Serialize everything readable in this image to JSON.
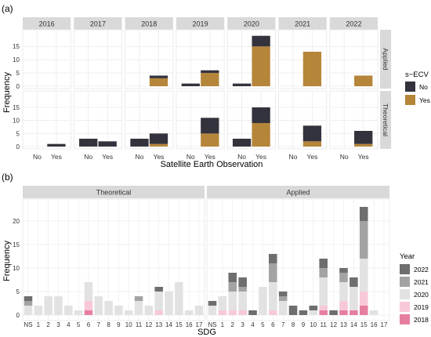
{
  "colors": {
    "no": "#33333d",
    "yes": "#b5853a",
    "y2022": "#6e6e6e",
    "y2021": "#a3a3a3",
    "y2020": "#e2e2e2",
    "y2019": "#f7c9d8",
    "y2018": "#e67f9f",
    "strip": "#d9d9d9",
    "grid": "#ebebeb",
    "border": "#bdbdbd"
  },
  "chart_data": [
    {
      "panel_label": "(a)",
      "type": "bar",
      "stacked": true,
      "facet_columns": [
        "2016",
        "2017",
        "2018",
        "2019",
        "2020",
        "2021",
        "2022"
      ],
      "facet_rows": [
        "Applied",
        "Theoretical"
      ],
      "categories": [
        "No",
        "Yes"
      ],
      "xlabel": "Satellite Earth Observation",
      "ylabel": "Frequency",
      "yticks": [
        0,
        5,
        10,
        15
      ],
      "ylim": [
        0,
        19.5
      ],
      "grid": true,
      "legend": {
        "title": "s−ECV",
        "entries": [
          "No",
          "Yes"
        ],
        "placement": "right"
      },
      "values": {
        "Applied": {
          "2016": {
            "No": {
              "Yes": 0,
              "No": 0
            },
            "Yes": {
              "Yes": 0,
              "No": 0
            }
          },
          "2017": {
            "No": {
              "Yes": 0,
              "No": 0
            },
            "Yes": {
              "Yes": 0,
              "No": 0
            }
          },
          "2018": {
            "No": {
              "Yes": 0,
              "No": 0
            },
            "Yes": {
              "Yes": 3,
              "No": 1
            }
          },
          "2019": {
            "No": {
              "Yes": 0,
              "No": 1
            },
            "Yes": {
              "Yes": 5,
              "No": 1
            }
          },
          "2020": {
            "No": {
              "Yes": 0,
              "No": 1
            },
            "Yes": {
              "Yes": 15,
              "No": 4
            }
          },
          "2021": {
            "No": {
              "Yes": 0,
              "No": 0
            },
            "Yes": {
              "Yes": 13,
              "No": 0
            }
          },
          "2022": {
            "No": {
              "Yes": 0,
              "No": 0
            },
            "Yes": {
              "Yes": 4,
              "No": 0
            }
          }
        },
        "Theoretical": {
          "2016": {
            "No": {
              "Yes": 0,
              "No": 0
            },
            "Yes": {
              "Yes": 0,
              "No": 1
            }
          },
          "2017": {
            "No": {
              "Yes": 0,
              "No": 3
            },
            "Yes": {
              "Yes": 0,
              "No": 2
            }
          },
          "2018": {
            "No": {
              "Yes": 0,
              "No": 3
            },
            "Yes": {
              "Yes": 1,
              "No": 4
            }
          },
          "2019": {
            "No": {
              "Yes": 0,
              "No": 0
            },
            "Yes": {
              "Yes": 5,
              "No": 6
            }
          },
          "2020": {
            "No": {
              "Yes": 0,
              "No": 3
            },
            "Yes": {
              "Yes": 9,
              "No": 6
            }
          },
          "2021": {
            "No": {
              "Yes": 0,
              "No": 0
            },
            "Yes": {
              "Yes": 2,
              "No": 6
            }
          },
          "2022": {
            "No": {
              "Yes": 0,
              "No": 0
            },
            "Yes": {
              "Yes": 1,
              "No": 5
            }
          }
        }
      }
    },
    {
      "panel_label": "(b)",
      "type": "bar",
      "stacked": true,
      "facets": [
        "Theoretical",
        "Applied"
      ],
      "categories": [
        "NS",
        "1",
        "2",
        "3",
        "4",
        "5",
        "6",
        "7",
        "8",
        "9",
        "10",
        "11",
        "12",
        "13",
        "14",
        "15",
        "16",
        "17"
      ],
      "xlabel": "SDG",
      "ylabel": "Frequency",
      "yticks": [
        0,
        5,
        10,
        15,
        20
      ],
      "ylim": [
        0,
        24
      ],
      "grid": true,
      "legend": {
        "title": "Year",
        "entries": [
          "2022",
          "2021",
          "2020",
          "2019",
          "2018"
        ],
        "placement": "right"
      },
      "stack_order": [
        "2018",
        "2019",
        "2020",
        "2021",
        "2022"
      ],
      "series": {
        "Theoretical": {
          "2018": [
            0,
            0,
            0,
            0,
            0,
            0,
            1,
            0,
            0,
            0,
            0,
            0,
            0,
            0,
            0,
            0,
            0,
            0
          ],
          "2019": [
            0,
            0,
            0,
            0,
            0,
            0,
            2,
            0,
            0,
            0,
            0,
            0,
            0,
            1,
            0,
            0,
            0,
            0
          ],
          "2020": [
            2,
            2,
            4,
            4,
            2,
            1,
            4,
            4,
            3,
            2,
            1,
            3,
            2,
            4,
            5,
            7,
            1,
            2
          ],
          "2021": [
            1,
            0,
            0,
            0,
            0,
            0,
            0,
            0,
            0,
            0,
            0,
            1,
            0,
            0,
            0,
            0,
            0,
            0
          ],
          "2022": [
            1,
            0,
            0,
            0,
            0,
            0,
            0,
            0,
            0,
            0,
            0,
            0,
            0,
            1,
            0,
            0,
            0,
            0
          ]
        },
        "Applied": {
          "2018": [
            0,
            0,
            0,
            0,
            0,
            0,
            0,
            0,
            0,
            0,
            0,
            1,
            0,
            1,
            1,
            2,
            0,
            0
          ],
          "2019": [
            0,
            1,
            1,
            1,
            0,
            0,
            1,
            0,
            0,
            0,
            0,
            1,
            0,
            2,
            0,
            3,
            0,
            0
          ],
          "2020": [
            2,
            3,
            4,
            4,
            0,
            6,
            6,
            3,
            0,
            0,
            1,
            6,
            0,
            4,
            5,
            7,
            1,
            0
          ],
          "2021": [
            0,
            0,
            2,
            1,
            0,
            0,
            4,
            1,
            0,
            0,
            0,
            2,
            0,
            2,
            0,
            8,
            0,
            0
          ],
          "2022": [
            1,
            0,
            2,
            2,
            1,
            0,
            2,
            1,
            2,
            1,
            1,
            2,
            1,
            1,
            2,
            3,
            0,
            0
          ]
        }
      }
    }
  ]
}
